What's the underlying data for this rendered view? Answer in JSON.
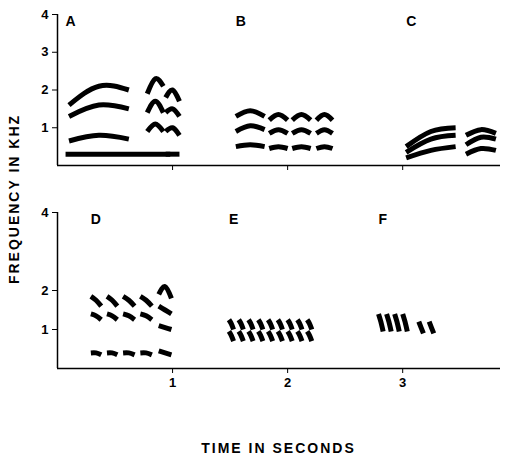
{
  "chart_data": [
    {
      "type": "spectrogram",
      "ylabel": "FREQUENCY IN KHZ",
      "color": "#000000",
      "xlim": [
        0,
        3.85
      ],
      "ylim": [
        0,
        4
      ],
      "xticks": [
        1,
        2,
        3
      ],
      "yticks": [
        1,
        2,
        3,
        4
      ],
      "tick_labels": "y",
      "groups": [
        {
          "name": "A",
          "notes": [
            {
              "t": [
                0.07,
                0.98
              ],
              "harmonics": [
                [
                  0.3,
                  0.3,
                  0.3
                ]
              ]
            },
            {
              "t": [
                0.1,
                0.62
              ],
              "harmonics": [
                [
                  0.65,
                  0.8,
                  0.7
                ],
                [
                  1.3,
                  1.6,
                  1.5
                ],
                [
                  1.6,
                  2.1,
                  2.0
                ]
              ]
            },
            {
              "t": [
                0.78,
                0.92
              ],
              "harmonics": [
                [
                  0.9,
                  1.1,
                  0.9
                ],
                [
                  1.4,
                  1.7,
                  1.4
                ],
                [
                  1.9,
                  2.3,
                  2.1
                ]
              ]
            },
            {
              "t": [
                0.94,
                1.06
              ],
              "harmonics": [
                [
                  0.3,
                  0.3,
                  0.3
                ],
                [
                  0.9,
                  1.0,
                  0.8
                ],
                [
                  1.4,
                  1.5,
                  1.3
                ],
                [
                  1.8,
                  2.0,
                  1.7
                ]
              ]
            }
          ]
        },
        {
          "name": "B",
          "notes": [
            {
              "t": [
                1.55,
                1.8
              ],
              "harmonics": [
                [
                  0.5,
                  0.55,
                  0.5
                ],
                [
                  0.9,
                  1.05,
                  0.95
                ],
                [
                  1.3,
                  1.45,
                  1.3
                ]
              ]
            },
            {
              "t": [
                1.84,
                2.0
              ],
              "harmonics": [
                [
                  0.45,
                  0.5,
                  0.45
                ],
                [
                  0.85,
                  0.95,
                  0.85
                ],
                [
                  1.2,
                  1.35,
                  1.2
                ]
              ]
            },
            {
              "t": [
                2.04,
                2.2
              ],
              "harmonics": [
                [
                  0.45,
                  0.5,
                  0.45
                ],
                [
                  0.85,
                  0.95,
                  0.85
                ],
                [
                  1.2,
                  1.35,
                  1.2
                ]
              ]
            },
            {
              "t": [
                2.25,
                2.39
              ],
              "harmonics": [
                [
                  0.45,
                  0.5,
                  0.45
                ],
                [
                  0.85,
                  0.95,
                  0.85
                ],
                [
                  1.2,
                  1.35,
                  1.2
                ]
              ]
            }
          ]
        },
        {
          "name": "C",
          "notes": [
            {
              "t": [
                3.03,
                3.46
              ],
              "harmonics": [
                [
                  0.2,
                  0.4,
                  0.5
                ],
                [
                  0.35,
                  0.7,
                  0.8
                ],
                [
                  0.5,
                  0.9,
                  1.0
                ]
              ]
            },
            {
              "t": [
                3.55,
                3.81
              ],
              "harmonics": [
                [
                  0.3,
                  0.45,
                  0.4
                ],
                [
                  0.55,
                  0.75,
                  0.7
                ],
                [
                  0.8,
                  0.95,
                  0.85
                ]
              ]
            }
          ]
        }
      ]
    },
    {
      "type": "spectrogram",
      "xlabel": "TIME IN SECONDS",
      "color": "#000000",
      "xlim": [
        0,
        3.85
      ],
      "ylim": [
        0,
        4
      ],
      "xticks": [
        1,
        2,
        3
      ],
      "yticks": [
        1,
        2,
        4
      ],
      "groups": [
        {
          "name": "D",
          "notes": [
            {
              "t": [
                0.29,
                0.38
              ],
              "harmonics": [
                [
                  0.4,
                  0.4,
                  0.35
                ],
                [
                  1.4,
                  1.35,
                  1.25
                ],
                [
                  1.85,
                  1.75,
                  1.6
                ]
              ]
            },
            {
              "t": [
                0.43,
                0.52
              ],
              "harmonics": [
                [
                  0.4,
                  0.4,
                  0.35
                ],
                [
                  1.4,
                  1.35,
                  1.25
                ],
                [
                  1.85,
                  1.75,
                  1.6
                ]
              ]
            },
            {
              "t": [
                0.57,
                0.67
              ],
              "harmonics": [
                [
                  0.4,
                  0.4,
                  0.35
                ],
                [
                  1.4,
                  1.35,
                  1.25
                ],
                [
                  1.85,
                  1.75,
                  1.6
                ]
              ]
            },
            {
              "t": [
                0.72,
                0.82
              ],
              "harmonics": [
                [
                  0.4,
                  0.4,
                  0.35
                ],
                [
                  1.4,
                  1.35,
                  1.25
                ],
                [
                  1.85,
                  1.75,
                  1.6
                ]
              ]
            },
            {
              "t": [
                0.88,
                0.99
              ],
              "harmonics": [
                [
                  0.45,
                  0.4,
                  0.35
                ],
                [
                  1.1,
                  1.05,
                  1.0
                ],
                [
                  1.6,
                  1.5,
                  1.4
                ],
                [
                  1.9,
                  2.1,
                  1.8
                ]
              ]
            }
          ]
        },
        {
          "name": "E",
          "notes": [
            {
              "t": [
                1.49,
                1.53
              ],
              "harmonics": [
                [
                  1.25,
                  1.15,
                  1.0
                ],
                [
                  0.95,
                  0.85,
                  0.7
                ]
              ]
            },
            {
              "t": [
                1.575,
                1.615
              ],
              "harmonics": [
                [
                  1.25,
                  1.15,
                  1.0
                ],
                [
                  0.95,
                  0.85,
                  0.7
                ]
              ]
            },
            {
              "t": [
                1.66,
                1.7
              ],
              "harmonics": [
                [
                  1.25,
                  1.15,
                  1.0
                ],
                [
                  0.95,
                  0.85,
                  0.7
                ]
              ]
            },
            {
              "t": [
                1.745,
                1.785
              ],
              "harmonics": [
                [
                  1.25,
                  1.15,
                  1.0
                ],
                [
                  0.95,
                  0.85,
                  0.7
                ]
              ]
            },
            {
              "t": [
                1.83,
                1.87
              ],
              "harmonics": [
                [
                  1.25,
                  1.15,
                  1.0
                ],
                [
                  0.95,
                  0.85,
                  0.7
                ]
              ]
            },
            {
              "t": [
                1.915,
                1.955
              ],
              "harmonics": [
                [
                  1.25,
                  1.15,
                  1.0
                ],
                [
                  0.95,
                  0.85,
                  0.7
                ]
              ]
            },
            {
              "t": [
                2.0,
                2.04
              ],
              "harmonics": [
                [
                  1.25,
                  1.15,
                  1.0
                ],
                [
                  0.95,
                  0.85,
                  0.7
                ]
              ]
            },
            {
              "t": [
                2.085,
                2.125
              ],
              "harmonics": [
                [
                  1.25,
                  1.15,
                  1.0
                ],
                [
                  0.95,
                  0.85,
                  0.7
                ]
              ]
            },
            {
              "t": [
                2.17,
                2.21
              ],
              "harmonics": [
                [
                  1.25,
                  1.15,
                  1.0
                ],
                [
                  0.95,
                  0.85,
                  0.7
                ]
              ]
            }
          ]
        },
        {
          "name": "F",
          "notes": [
            {
              "t": [
                2.79,
                2.83
              ],
              "harmonics": [
                [
                  1.4,
                  1.2,
                  0.95
                ]
              ]
            },
            {
              "t": [
                2.86,
                2.9
              ],
              "harmonics": [
                [
                  1.4,
                  1.2,
                  0.95
                ]
              ]
            },
            {
              "t": [
                2.93,
                2.97
              ],
              "harmonics": [
                [
                  1.4,
                  1.2,
                  0.95
                ]
              ]
            },
            {
              "t": [
                3.0,
                3.04
              ],
              "harmonics": [
                [
                  1.4,
                  1.2,
                  0.95
                ]
              ]
            },
            {
              "t": [
                3.14,
                3.18
              ],
              "harmonics": [
                [
                  1.2,
                  1.05,
                  0.9
                ]
              ]
            },
            {
              "t": [
                3.23,
                3.27
              ],
              "harmonics": [
                [
                  1.2,
                  1.05,
                  0.9
                ]
              ]
            }
          ]
        }
      ]
    }
  ]
}
